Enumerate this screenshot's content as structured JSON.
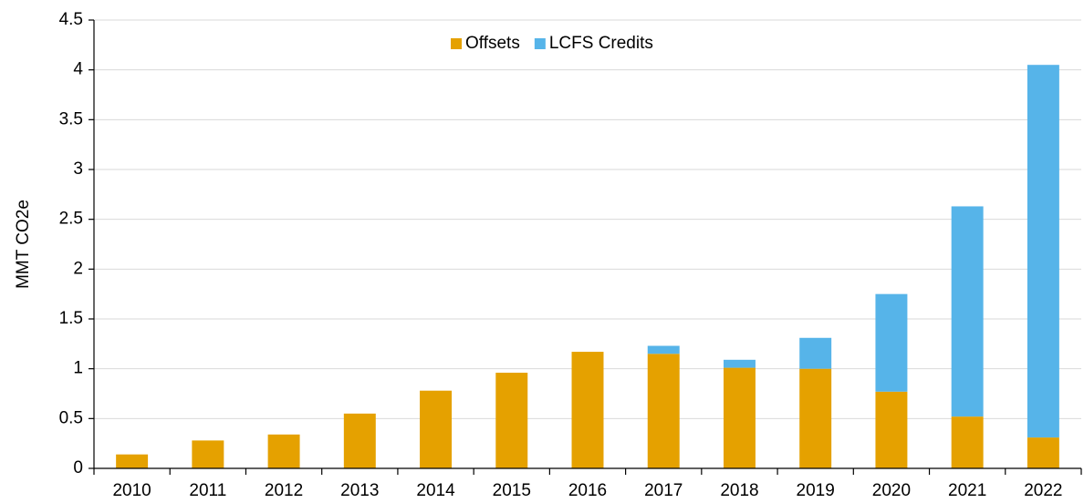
{
  "chart_data": {
    "type": "stacked_bar",
    "y_label": "MMT CO2e",
    "categories": [
      "2010",
      "2011",
      "2012",
      "2013",
      "2014",
      "2015",
      "2016",
      "2017",
      "2018",
      "2019",
      "2020",
      "2021",
      "2022"
    ],
    "series": [
      {
        "name": "Offsets",
        "color": "#e5a100",
        "values": [
          0.14,
          0.28,
          0.34,
          0.55,
          0.78,
          0.96,
          1.17,
          1.15,
          1.01,
          1.0,
          0.77,
          0.52,
          0.31
        ]
      },
      {
        "name": "LCFS Credits",
        "color": "#56b4e9",
        "values": [
          0,
          0,
          0,
          0,
          0,
          0,
          0,
          0.08,
          0.08,
          0.31,
          0.98,
          2.11,
          3.74
        ]
      }
    ],
    "ylim": [
      0,
      4.5
    ],
    "yticks": [
      0,
      0.5,
      1,
      1.5,
      2,
      2.5,
      3,
      3.5,
      4,
      4.5
    ],
    "grid": true,
    "legend": "top"
  }
}
